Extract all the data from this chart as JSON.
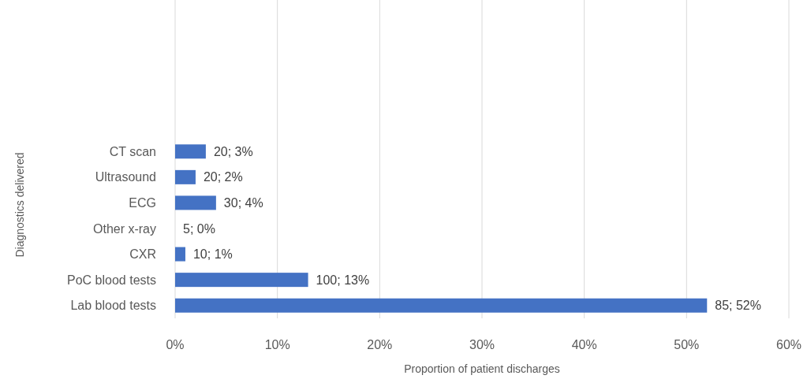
{
  "chart_data": {
    "type": "bar",
    "orientation": "horizontal",
    "xlabel": "Proportion of patient discharges",
    "ylabel": "Diagnostics delivered",
    "categories": [
      "CT scan",
      "Ultrasound",
      "ECG",
      "Other x-ray",
      "CXR",
      "PoC blood tests",
      "Lab blood tests"
    ],
    "values": [
      3,
      2,
      4,
      0,
      1,
      13,
      52
    ],
    "value_labels": [
      "20; 3%",
      "20; 2%",
      "30; 4%",
      "5; 0%",
      "10; 1%",
      "100; 13%",
      "85; 52%"
    ],
    "color": "#4472c4",
    "xlim": [
      0,
      60
    ],
    "xticks": [
      {
        "value": 0,
        "label": "0%"
      },
      {
        "value": 10,
        "label": "10%"
      },
      {
        "value": 20,
        "label": "20%"
      },
      {
        "value": 30,
        "label": "30%"
      },
      {
        "value": 40,
        "label": "40%"
      },
      {
        "value": 50,
        "label": "50%"
      },
      {
        "value": 60,
        "label": "60%"
      }
    ],
    "grid": "x"
  }
}
